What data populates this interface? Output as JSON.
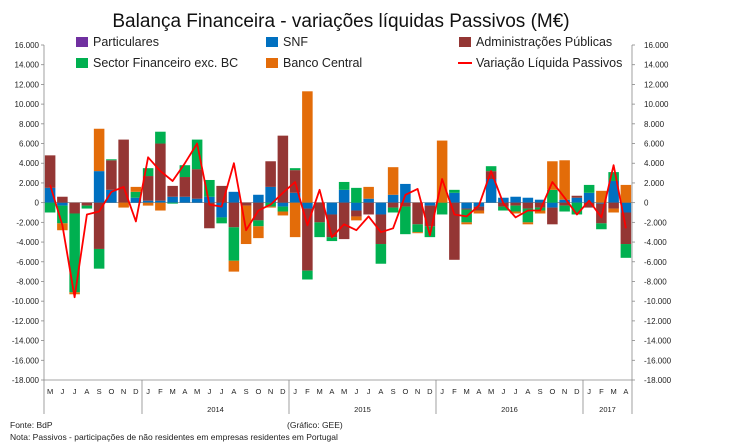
{
  "chart_data": {
    "type": "bar",
    "stacked": true,
    "title": "Balança Financeira - variações líquidas Passivos (M€)",
    "ylim": [
      -18000,
      16000
    ],
    "ytick_step": 2000,
    "y_tick_labels": [
      "-18.000",
      "-16.000",
      "-14.000",
      "-12.000",
      "-10.000",
      "-8.000",
      "-6.000",
      "-4.000",
      "-2.000",
      "0",
      "2.000",
      "4.000",
      "6.000",
      "8.000",
      "10.000",
      "12.000",
      "14.000",
      "16.000"
    ],
    "legend": [
      {
        "name": "Particulares",
        "color": "#7030A0",
        "kind": "bar"
      },
      {
        "name": "SNF",
        "color": "#0070C0",
        "kind": "bar"
      },
      {
        "name": "Administrações Públicas",
        "color": "#943634",
        "kind": "bar"
      },
      {
        "name": "Sector Financeiro exc. BC",
        "color": "#00B050",
        "kind": "bar"
      },
      {
        "name": "Banco Central",
        "color": "#E36C09",
        "kind": "bar"
      },
      {
        "name": "Variação Líquida Passivos",
        "color": "#FF0000",
        "kind": "line"
      }
    ],
    "months": [
      "M",
      "J",
      "J",
      "A",
      "S",
      "O",
      "N",
      "D",
      "J",
      "F",
      "M",
      "A",
      "M",
      "J",
      "J",
      "A",
      "S",
      "O",
      "N",
      "D",
      "J",
      "F",
      "M",
      "A",
      "M",
      "J",
      "J",
      "A",
      "S",
      "O",
      "N",
      "D",
      "J",
      "F",
      "M",
      "A",
      "M",
      "J",
      "J",
      "A",
      "S",
      "O",
      "N",
      "D",
      "J",
      "F",
      "M",
      "A"
    ],
    "years": [
      {
        "label": "2014",
        "start": 8,
        "end": 19
      },
      {
        "label": "2015",
        "start": 20,
        "end": 31
      },
      {
        "label": "2016",
        "start": 32,
        "end": 43
      },
      {
        "label": "2017",
        "start": 44,
        "end": 47
      }
    ],
    "series": [
      {
        "name": "Particulares",
        "values": [
          0,
          0,
          0,
          0,
          0,
          0,
          0,
          0,
          0,
          0,
          0,
          0,
          0,
          0,
          0,
          0,
          0,
          0,
          0,
          0,
          0,
          0,
          0,
          0,
          0,
          0,
          0,
          0,
          0,
          0,
          0,
          0,
          0,
          0,
          0,
          0,
          0,
          0,
          0,
          0,
          0,
          0,
          0,
          0,
          0,
          0,
          0,
          0
        ]
      },
      {
        "name": "SNF",
        "values": [
          1500,
          -300,
          0,
          0,
          3200,
          1300,
          0,
          500,
          200,
          200,
          600,
          600,
          400,
          600,
          -1500,
          1100,
          0,
          800,
          1600,
          -400,
          1000,
          -600,
          0,
          -1200,
          1300,
          -800,
          400,
          -1200,
          800,
          1900,
          0,
          -300,
          0,
          1000,
          -600,
          -400,
          2400,
          500,
          600,
          500,
          300,
          -500,
          300,
          500,
          1000,
          -100,
          2200,
          -1000
        ]
      },
      {
        "name": "Administrações Públicas",
        "values": [
          3300,
          600,
          -1100,
          -300,
          -4700,
          3000,
          6400,
          0,
          2500,
          5800,
          1100,
          2000,
          3000,
          -2600,
          1700,
          -2500,
          -300,
          -1800,
          2600,
          6800,
          2300,
          -6300,
          -2000,
          -2300,
          -3700,
          -600,
          -1200,
          -3000,
          -500,
          -400,
          -2200,
          -2100,
          0,
          -5800,
          -100,
          -400,
          800,
          -400,
          -300,
          -600,
          -500,
          -1700,
          -300,
          200,
          -500,
          -2000,
          -600,
          -3200
        ]
      },
      {
        "name": "Sector Financeiro exc. BC",
        "values": [
          -1000,
          -1800,
          -8000,
          -300,
          -2000,
          100,
          0,
          600,
          800,
          1200,
          -100,
          1200,
          3000,
          1700,
          -600,
          -3400,
          0,
          -600,
          -400,
          -500,
          200,
          -900,
          -1500,
          -400,
          800,
          1500,
          0,
          -2000,
          -500,
          -2800,
          -800,
          -1100,
          -1200,
          300,
          -1300,
          0,
          500,
          -400,
          -600,
          -1400,
          -300,
          1300,
          -600,
          -1200,
          800,
          -600,
          900,
          -1400
        ]
      },
      {
        "name": "Banco Central",
        "values": [
          0,
          -700,
          -200,
          0,
          4300,
          0,
          -500,
          500,
          -300,
          -800,
          0,
          0,
          0,
          0,
          0,
          -1100,
          -3900,
          -1200,
          -100,
          -400,
          -3500,
          11300,
          0,
          0,
          0,
          -400,
          1200,
          0,
          2800,
          0,
          -100,
          0,
          6300,
          0,
          -200,
          -300,
          0,
          0,
          -200,
          -200,
          -300,
          2900,
          4000,
          0,
          0,
          1200,
          -400,
          1800
        ]
      }
    ],
    "line": {
      "name": "Variação Líquida Passivos",
      "values": [
        1800,
        -2300,
        -9600,
        -1200,
        -900,
        1100,
        1600,
        -1900,
        4600,
        3200,
        2200,
        4000,
        6000,
        -200,
        -400,
        4000,
        -2800,
        -800,
        -200,
        1000,
        2100,
        -2300,
        1300,
        -3500,
        -2200,
        -2800,
        -1400,
        -3000,
        -2600,
        800,
        1400,
        -3300,
        2400,
        -1200,
        -1400,
        -300,
        3200,
        -100,
        -1500,
        -800,
        -800,
        2100,
        500,
        -1200,
        200,
        -1500,
        3800,
        -2600
      ]
    },
    "footer": {
      "source": "Fonte: BdP",
      "graph_credit": "(Gráfico: GEE)",
      "note": "Nota: Passivos - participações de não residentes em empresas residentes em Portugal"
    }
  }
}
